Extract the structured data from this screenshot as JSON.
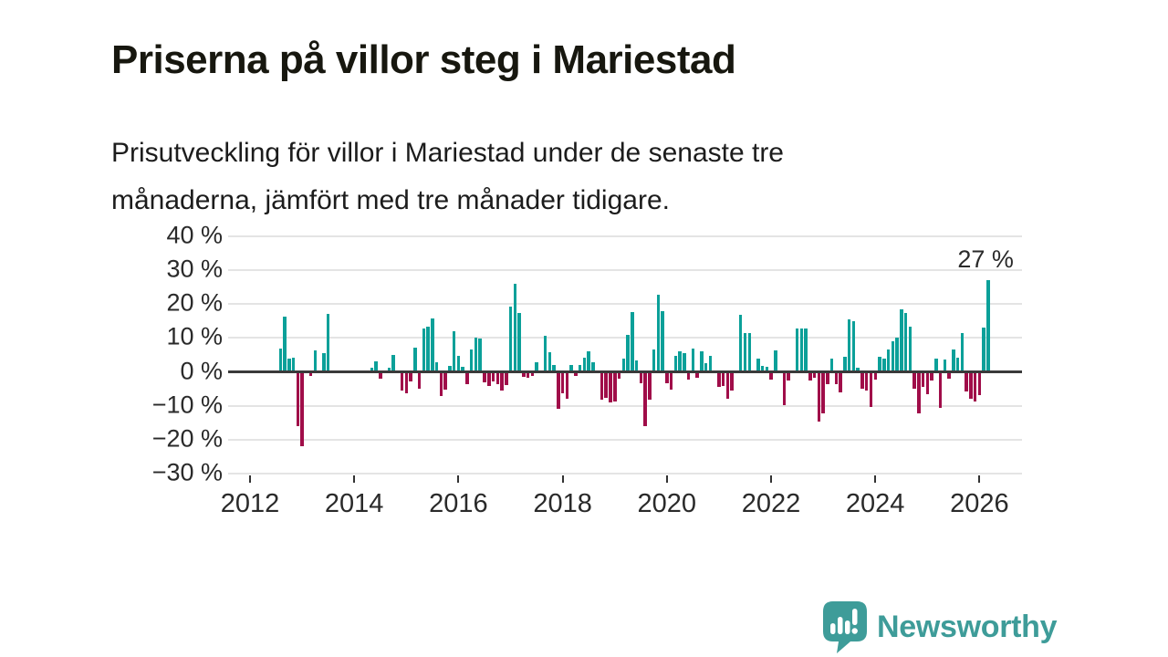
{
  "header": {
    "title": "Priserna på villor steg i Mariestad",
    "subtitle": "Prisutveckling för villor i Mariestad under de senaste tre\nmånaderna, jämfört med tre månader tidigare."
  },
  "chart_data": {
    "type": "bar",
    "title": "",
    "xlabel": "",
    "ylabel": "",
    "unit": "%",
    "ylim": [
      -30,
      40
    ],
    "grid": true,
    "y_ticks": [
      {
        "label": "40 %",
        "value": 40
      },
      {
        "label": "30 %",
        "value": 30
      },
      {
        "label": "20 %",
        "value": 20
      },
      {
        "label": "10 %",
        "value": 10
      },
      {
        "label": "0 %",
        "value": 0
      },
      {
        "label": "−10 %",
        "value": -10
      },
      {
        "label": "−20 %",
        "value": -20
      },
      {
        "label": "−30 %",
        "value": -30
      }
    ],
    "x_ticks": [
      {
        "label": "2012",
        "year": 2012
      },
      {
        "label": "2014",
        "year": 2014
      },
      {
        "label": "2016",
        "year": 2016
      },
      {
        "label": "2018",
        "year": 2018
      },
      {
        "label": "2020",
        "year": 2020
      },
      {
        "label": "2022",
        "year": 2022
      },
      {
        "label": "2024",
        "year": 2024
      },
      {
        "label": "2026",
        "year": 2026
      }
    ],
    "annotation": {
      "text": "27 %",
      "value": 27
    },
    "colors": {
      "positive": "#0BA099",
      "negative": "#A00D49",
      "zero_line": "#3A3A3A",
      "gridline": "#E4E4E4"
    },
    "series": [
      [
        "2012-08",
        7
      ],
      [
        "2012-09",
        16.3
      ],
      [
        "2012-10",
        4
      ],
      [
        "2012-11",
        4.3
      ],
      [
        "2012-12",
        -16
      ],
      [
        "2013-01",
        -21.8
      ],
      [
        "2013-03",
        -1.2
      ],
      [
        "2013-04",
        6.4
      ],
      [
        "2013-06",
        5.5
      ],
      [
        "2013-07",
        17
      ],
      [
        "2014-05",
        1.3
      ],
      [
        "2014-06",
        3.2
      ],
      [
        "2014-07",
        -2.1
      ],
      [
        "2014-09",
        1.2
      ],
      [
        "2014-10",
        5.1
      ],
      [
        "2014-12",
        -5.4
      ],
      [
        "2015-01",
        -6.3
      ],
      [
        "2015-02",
        -2.8
      ],
      [
        "2015-03",
        7.1
      ],
      [
        "2015-04",
        -5
      ],
      [
        "2015-05",
        12.8
      ],
      [
        "2015-06",
        13.2
      ],
      [
        "2015-07",
        15.8
      ],
      [
        "2015-08",
        2.8
      ],
      [
        "2015-09",
        -7.2
      ],
      [
        "2015-10",
        -5.2
      ],
      [
        "2015-11",
        1.8
      ],
      [
        "2015-12",
        12
      ],
      [
        "2016-01",
        4.6
      ],
      [
        "2016-02",
        1.4
      ],
      [
        "2016-03",
        -3.6
      ],
      [
        "2016-04",
        6.6
      ],
      [
        "2016-05",
        10.2
      ],
      [
        "2016-06",
        9.8
      ],
      [
        "2016-07",
        -3.2
      ],
      [
        "2016-08",
        -4.1
      ],
      [
        "2016-09",
        -2.7
      ],
      [
        "2016-10",
        -3.6
      ],
      [
        "2016-11",
        -5.4
      ],
      [
        "2016-12",
        -4
      ],
      [
        "2017-01",
        19.2
      ],
      [
        "2017-02",
        26
      ],
      [
        "2017-03",
        17.4
      ],
      [
        "2017-04",
        -1.5
      ],
      [
        "2017-05",
        -1.8
      ],
      [
        "2017-06",
        -1.2
      ],
      [
        "2017-07",
        2.9
      ],
      [
        "2017-09",
        10.5
      ],
      [
        "2017-10",
        5.7
      ],
      [
        "2017-11",
        2
      ],
      [
        "2017-12",
        -11
      ],
      [
        "2018-01",
        -6.3
      ],
      [
        "2018-02",
        -8
      ],
      [
        "2018-03",
        2.1
      ],
      [
        "2018-04",
        -1.2
      ],
      [
        "2018-05",
        2.1
      ],
      [
        "2018-06",
        4.2
      ],
      [
        "2018-07",
        6
      ],
      [
        "2018-08",
        2.9
      ],
      [
        "2018-10",
        -8.3
      ],
      [
        "2018-11",
        -7.7
      ],
      [
        "2018-12",
        -8.9
      ],
      [
        "2019-01",
        -8.7
      ],
      [
        "2019-02",
        -2
      ],
      [
        "2019-03",
        3.8
      ],
      [
        "2019-04",
        11
      ],
      [
        "2019-05",
        17.6
      ],
      [
        "2019-06",
        3.3
      ],
      [
        "2019-07",
        -3.4
      ],
      [
        "2019-08",
        -16
      ],
      [
        "2019-09",
        -8.3
      ],
      [
        "2019-10",
        6.6
      ],
      [
        "2019-11",
        22.7
      ],
      [
        "2019-12",
        17.8
      ],
      [
        "2020-01",
        -3.4
      ],
      [
        "2020-02",
        -5.2
      ],
      [
        "2020-03",
        4.8
      ],
      [
        "2020-04",
        6
      ],
      [
        "2020-05",
        5.4
      ],
      [
        "2020-06",
        -2.3
      ],
      [
        "2020-07",
        6.9
      ],
      [
        "2020-08",
        -1.8
      ],
      [
        "2020-09",
        6
      ],
      [
        "2020-10",
        2.7
      ],
      [
        "2020-11",
        4.6
      ],
      [
        "2021-01",
        -4.4
      ],
      [
        "2021-02",
        -4.2
      ],
      [
        "2021-03",
        -8
      ],
      [
        "2021-04",
        -5.5
      ],
      [
        "2021-06",
        16.7
      ],
      [
        "2021-07",
        11.5
      ],
      [
        "2021-08",
        11.5
      ],
      [
        "2021-10",
        4
      ],
      [
        "2021-11",
        1.8
      ],
      [
        "2021-12",
        1.5
      ],
      [
        "2022-01",
        -2.2
      ],
      [
        "2022-02",
        6.2
      ],
      [
        "2022-04",
        -9.8
      ],
      [
        "2022-05",
        -2.5
      ],
      [
        "2022-07",
        12.9
      ],
      [
        "2022-08",
        12.9
      ],
      [
        "2022-09",
        12.9
      ],
      [
        "2022-10",
        -2.5
      ],
      [
        "2022-11",
        -1.8
      ],
      [
        "2022-12",
        -14.7
      ],
      [
        "2023-01",
        -12.2
      ],
      [
        "2023-02",
        -3.6
      ],
      [
        "2023-03",
        3.8
      ],
      [
        "2023-04",
        -3.5
      ],
      [
        "2023-05",
        -6
      ],
      [
        "2023-06",
        4.5
      ],
      [
        "2023-07",
        15.5
      ],
      [
        "2023-08",
        14.8
      ],
      [
        "2023-09",
        1.2
      ],
      [
        "2023-10",
        -5
      ],
      [
        "2023-11",
        -5.5
      ],
      [
        "2023-12",
        -10.4
      ],
      [
        "2024-01",
        -2.4
      ],
      [
        "2024-02",
        4.5
      ],
      [
        "2024-03",
        3.8
      ],
      [
        "2024-04",
        6.7
      ],
      [
        "2024-05",
        8.9
      ],
      [
        "2024-06",
        10.1
      ],
      [
        "2024-07",
        18.3
      ],
      [
        "2024-08",
        17.4
      ],
      [
        "2024-09",
        13.4
      ],
      [
        "2024-10",
        -5
      ],
      [
        "2024-11",
        -12.2
      ],
      [
        "2024-12",
        -4.3
      ],
      [
        "2025-01",
        -6.5
      ],
      [
        "2025-02",
        -2.5
      ],
      [
        "2025-03",
        3.8
      ],
      [
        "2025-04",
        -10.5
      ],
      [
        "2025-05",
        3.6
      ],
      [
        "2025-06",
        -2.1
      ],
      [
        "2025-07",
        6.6
      ],
      [
        "2025-08",
        4.3
      ],
      [
        "2025-09",
        11.5
      ],
      [
        "2025-10",
        -5.9
      ],
      [
        "2025-11",
        -7.9
      ],
      [
        "2025-12",
        -8.6
      ],
      [
        "2026-01",
        -6.8
      ],
      [
        "2026-02",
        13
      ],
      [
        "2026-03",
        27
      ]
    ]
  },
  "footer": {
    "brand": "Newsworthy",
    "brand_color": "#3E9C99"
  }
}
